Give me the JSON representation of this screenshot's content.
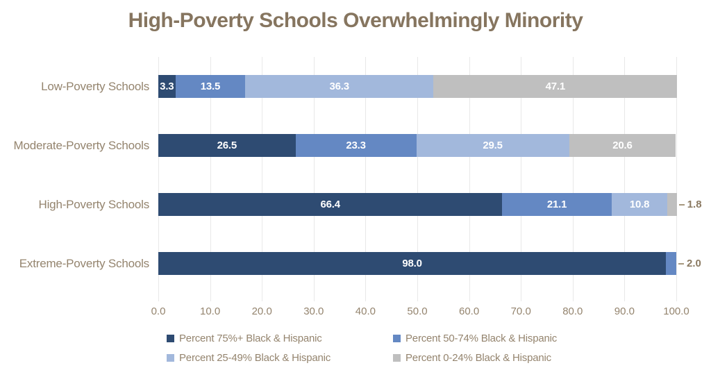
{
  "chart_data": {
    "type": "bar",
    "orientation": "horizontal",
    "stacked": true,
    "title": "High-Poverty Schools Overwhelmingly Minority",
    "categories": [
      "Low-Poverty Schools",
      "Moderate-Poverty Schools",
      "High-Poverty Schools",
      "Extreme-Poverty Schools"
    ],
    "series": [
      {
        "name": "Percent 75%+ Black & Hispanic",
        "color": "#2e4b72",
        "values": [
          3.3,
          26.5,
          66.4,
          98.0
        ]
      },
      {
        "name": "Percent 50-74% Black & Hispanic",
        "color": "#6488c3",
        "values": [
          13.5,
          23.3,
          21.1,
          2.0
        ]
      },
      {
        "name": "Percent 25-49% Black & Hispanic",
        "color": "#a2b8dc",
        "values": [
          36.3,
          29.5,
          10.8,
          0
        ]
      },
      {
        "name": "Percent 0-24% Black & Hispanic",
        "color": "#bfbfbf",
        "values": [
          47.1,
          20.6,
          1.8,
          0
        ]
      }
    ],
    "xlim": [
      0,
      100
    ],
    "x_ticks": [
      "0.0",
      "10.0",
      "20.0",
      "30.0",
      "40.0",
      "50.0",
      "60.0",
      "70.0",
      "80.0",
      "90.0",
      "100.0"
    ],
    "grid": true,
    "legend_position": "bottom",
    "legend_rows": [
      [
        0,
        1
      ],
      [
        2,
        3
      ]
    ],
    "outside_label_threshold": 3,
    "inside_label_color": "#ffffff"
  },
  "styles": {
    "title_color": "#86755f",
    "axis_text_color": "#94846e",
    "gridline_color": "#e8e8e8",
    "leader_color": "#a6987e",
    "outside_label_color": "#8b7a62",
    "background": "#ffffff"
  }
}
